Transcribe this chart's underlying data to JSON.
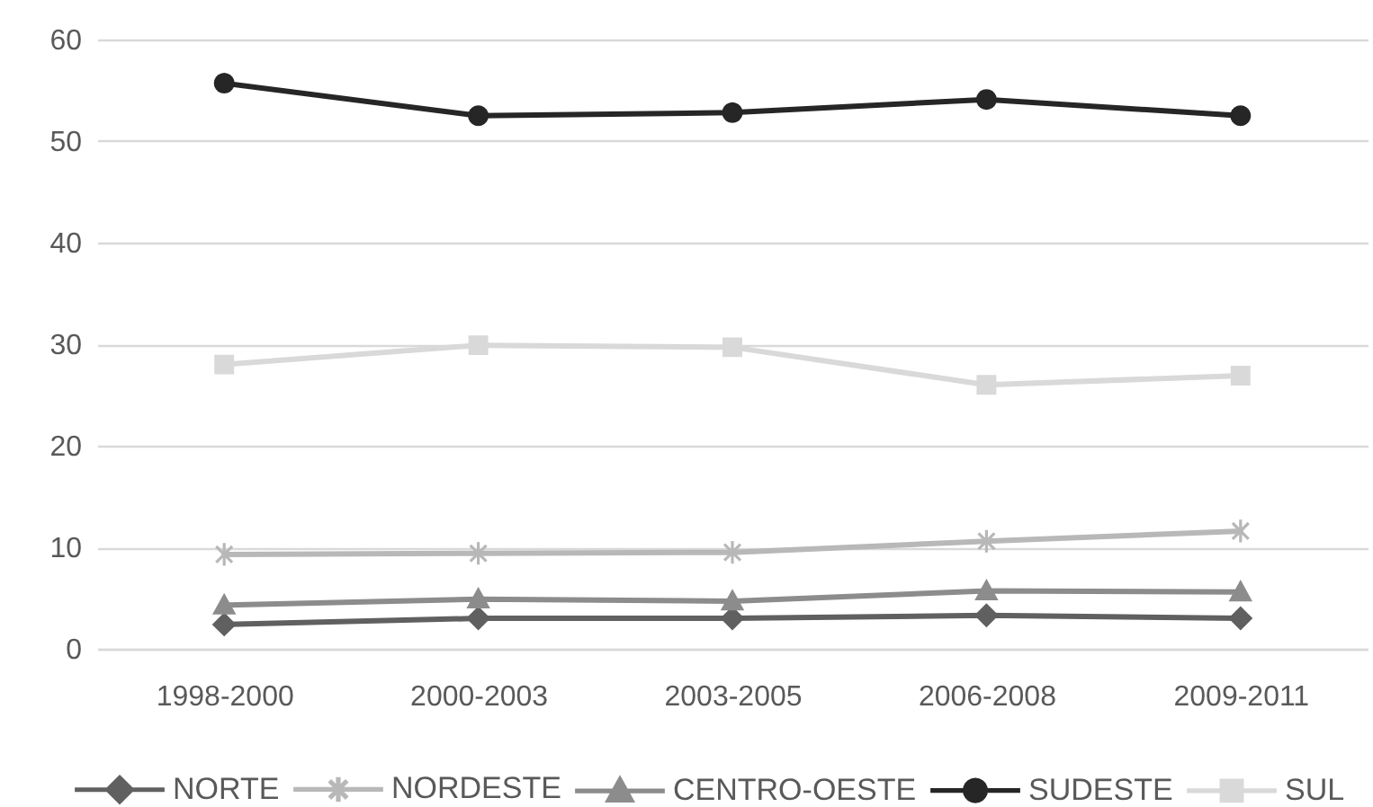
{
  "chart_data": {
    "type": "line",
    "categories": [
      "1998-2000",
      "2000-2003",
      "2003-2005",
      "2006-2008",
      "2009-2011"
    ],
    "series": [
      {
        "name": "NORTE",
        "color": "#606060",
        "marker": "diamond",
        "values": [
          2.4,
          3.0,
          3.0,
          3.3,
          3.0
        ]
      },
      {
        "name": "NORDESTE",
        "color": "#b8b8b8",
        "marker": "cross",
        "values": [
          9.3,
          9.4,
          9.5,
          10.6,
          11.6
        ]
      },
      {
        "name": "CENTRO-OESTE",
        "color": "#8c8c8c",
        "marker": "triangle",
        "values": [
          4.3,
          4.9,
          4.7,
          5.7,
          5.6
        ]
      },
      {
        "name": "SUDESTE",
        "color": "#262626",
        "marker": "circle",
        "values": [
          55.7,
          52.5,
          52.8,
          54.1,
          52.5
        ]
      },
      {
        "name": "SUL",
        "color": "#d9d9d9",
        "marker": "square",
        "values": [
          28.0,
          29.9,
          29.7,
          26.0,
          26.9
        ]
      }
    ],
    "ylim": [
      0,
      60
    ],
    "yticks": [
      0,
      10,
      20,
      30,
      40,
      50,
      60
    ],
    "grid": "y",
    "legend": "bottom"
  }
}
